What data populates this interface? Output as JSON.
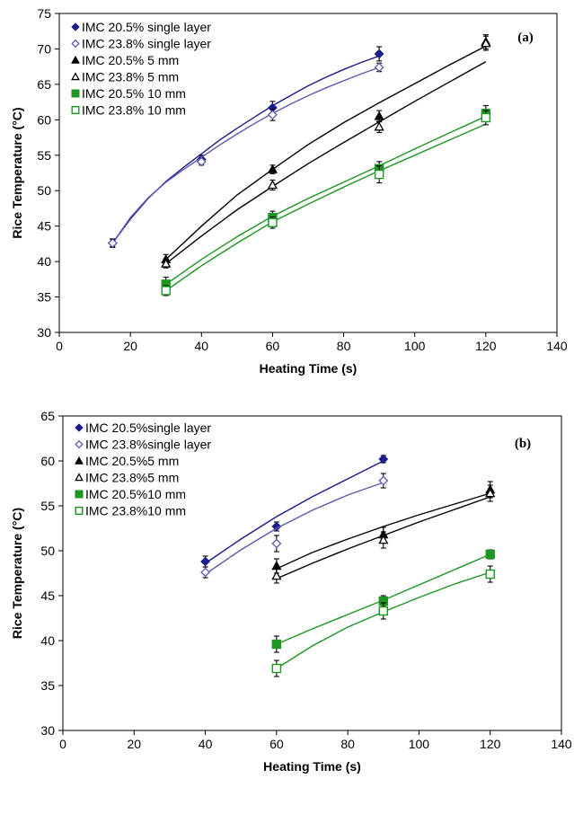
{
  "chart_data": [
    {
      "type": "line",
      "panel_label": "(a)",
      "xlabel": "Heating Time (s)",
      "ylabel": "Rice Temperature (°C)",
      "xlim": [
        0,
        140
      ],
      "ylim": [
        30,
        75
      ],
      "xticks": [
        "0",
        "20",
        "40",
        "60",
        "80",
        "100",
        "120",
        "140"
      ],
      "yticks": [
        "30",
        "35",
        "40",
        "45",
        "50",
        "55",
        "60",
        "65",
        "70",
        "75"
      ],
      "grid": false,
      "legend_position": "top-left",
      "series": [
        {
          "name": "IMC 20.5% single layer",
          "color": "#1c1c8c",
          "marker": "diamond-filled",
          "points": [
            {
              "x": 15,
              "y": 42.6,
              "err": 0.6
            },
            {
              "x": 40,
              "y": 54.4,
              "err": 0.6
            },
            {
              "x": 60,
              "y": 61.7,
              "err": 0.9
            },
            {
              "x": 90,
              "y": 69.3,
              "err": 1.0
            }
          ],
          "curve": [
            [
              15,
              42.6
            ],
            [
              20,
              46.0
            ],
            [
              25,
              48.9
            ],
            [
              30,
              51.3
            ],
            [
              35,
              53.3
            ],
            [
              40,
              55.2
            ],
            [
              45,
              57.1
            ],
            [
              50,
              58.8
            ],
            [
              55,
              60.4
            ],
            [
              60,
              62.0
            ],
            [
              65,
              63.4
            ],
            [
              70,
              64.8
            ],
            [
              75,
              66.0
            ],
            [
              80,
              67.1
            ],
            [
              85,
              68.1
            ],
            [
              90,
              69.0
            ]
          ]
        },
        {
          "name": "IMC 23.8% single layer",
          "color": "#5a5ab4",
          "marker": "diamond-open",
          "points": [
            {
              "x": 15,
              "y": 42.6,
              "err": 0.5
            },
            {
              "x": 40,
              "y": 54.1,
              "err": 0.5
            },
            {
              "x": 60,
              "y": 60.7,
              "err": 0.8
            },
            {
              "x": 90,
              "y": 67.4,
              "err": 0.6
            }
          ],
          "curve": [
            [
              15,
              42.6
            ],
            [
              20,
              46.2
            ],
            [
              25,
              49.0
            ],
            [
              30,
              51.2
            ],
            [
              35,
              53.0
            ],
            [
              40,
              54.7
            ],
            [
              45,
              56.4
            ],
            [
              50,
              58.0
            ],
            [
              55,
              59.5
            ],
            [
              60,
              60.9
            ],
            [
              65,
              62.2
            ],
            [
              70,
              63.4
            ],
            [
              75,
              64.5
            ],
            [
              80,
              65.5
            ],
            [
              85,
              66.5
            ],
            [
              90,
              67.4
            ]
          ]
        },
        {
          "name": "IMC 20.5% 5 mm",
          "color": "#000000",
          "marker": "triangle-filled",
          "points": [
            {
              "x": 30,
              "y": 40.3,
              "err": 0.7
            },
            {
              "x": 60,
              "y": 53.0,
              "err": 0.6
            },
            {
              "x": 90,
              "y": 60.5,
              "err": 0.8
            },
            {
              "x": 120,
              "y": 71.0,
              "err": 1.0
            }
          ],
          "curve": [
            [
              30,
              40.3
            ],
            [
              40,
              45.0
            ],
            [
              50,
              49.4
            ],
            [
              60,
              53.0
            ],
            [
              70,
              56.5
            ],
            [
              80,
              59.6
            ],
            [
              90,
              62.4
            ],
            [
              100,
              65.1
            ],
            [
              110,
              67.8
            ],
            [
              120,
              70.4
            ]
          ]
        },
        {
          "name": "IMC 23.8% 5 mm",
          "color": "#000000",
          "marker": "triangle-open",
          "points": [
            {
              "x": 30,
              "y": 39.7,
              "err": 0.6
            },
            {
              "x": 60,
              "y": 50.8,
              "err": 0.7
            },
            {
              "x": 90,
              "y": 59.0,
              "err": 0.8
            },
            {
              "x": 120,
              "y": 70.8,
              "err": 1.0
            }
          ],
          "curve": [
            [
              30,
              39.7
            ],
            [
              40,
              43.6
            ],
            [
              50,
              47.3
            ],
            [
              60,
              50.6
            ],
            [
              70,
              53.8
            ],
            [
              80,
              56.8
            ],
            [
              90,
              59.7
            ],
            [
              100,
              62.6
            ],
            [
              110,
              65.4
            ],
            [
              120,
              68.2
            ]
          ]
        },
        {
          "name": "IMC 20.5% 10 mm",
          "color": "#1e9622",
          "marker": "square-filled",
          "points": [
            {
              "x": 30,
              "y": 36.8,
              "err": 1.0
            },
            {
              "x": 60,
              "y": 46.2,
              "err": 0.9
            },
            {
              "x": 90,
              "y": 53.1,
              "err": 1.0
            },
            {
              "x": 120,
              "y": 60.9,
              "err": 1.1
            }
          ],
          "curve": [
            [
              30,
              36.8
            ],
            [
              40,
              40.3
            ],
            [
              50,
              43.5
            ],
            [
              60,
              46.4
            ],
            [
              70,
              48.9
            ],
            [
              80,
              51.2
            ],
            [
              90,
              53.5
            ],
            [
              100,
              55.9
            ],
            [
              110,
              58.2
            ],
            [
              120,
              60.5
            ]
          ]
        },
        {
          "name": "IMC 23.8% 10 mm",
          "color": "#1e9622",
          "marker": "square-open",
          "points": [
            {
              "x": 30,
              "y": 35.9,
              "err": 0.7
            },
            {
              "x": 60,
              "y": 45.5,
              "err": 0.8
            },
            {
              "x": 90,
              "y": 52.3,
              "err": 1.2
            },
            {
              "x": 120,
              "y": 60.3,
              "err": 1.0
            }
          ],
          "curve": [
            [
              30,
              35.9
            ],
            [
              40,
              39.4
            ],
            [
              50,
              42.6
            ],
            [
              60,
              45.6
            ],
            [
              70,
              48.1
            ],
            [
              80,
              50.5
            ],
            [
              90,
              52.8
            ],
            [
              100,
              55.0
            ],
            [
              110,
              57.2
            ],
            [
              120,
              59.4
            ]
          ]
        }
      ]
    },
    {
      "type": "line",
      "panel_label": "(b)",
      "xlabel": "Heating Time (s)",
      "ylabel": "Rice Temperature (°C)",
      "xlim": [
        0,
        140
      ],
      "ylim": [
        30,
        65
      ],
      "xticks": [
        "0",
        "20",
        "40",
        "60",
        "80",
        "100",
        "120",
        "140"
      ],
      "yticks": [
        "30",
        "35",
        "40",
        "45",
        "50",
        "55",
        "60",
        "65"
      ],
      "grid": false,
      "legend_position": "top-left",
      "series": [
        {
          "name": "IMC 20.5%single layer",
          "color": "#1c1c8c",
          "marker": "diamond-filled",
          "points": [
            {
              "x": 40,
              "y": 48.8,
              "err": 0.6
            },
            {
              "x": 60,
              "y": 52.7,
              "err": 0.5
            },
            {
              "x": 90,
              "y": 60.2,
              "err": 0.4
            }
          ],
          "curve": [
            [
              40,
              48.6
            ],
            [
              50,
              51.3
            ],
            [
              60,
              53.8
            ],
            [
              70,
              56.0
            ],
            [
              80,
              58.0
            ],
            [
              90,
              60.0
            ]
          ]
        },
        {
          "name": "IMC 23.8%single layer",
          "color": "#5a5ab4",
          "marker": "diamond-open",
          "points": [
            {
              "x": 40,
              "y": 47.6,
              "err": 0.6
            },
            {
              "x": 60,
              "y": 50.8,
              "err": 0.9
            },
            {
              "x": 90,
              "y": 57.8,
              "err": 0.8
            }
          ],
          "curve": [
            [
              40,
              47.4
            ],
            [
              50,
              50.1
            ],
            [
              60,
              52.5
            ],
            [
              70,
              54.5
            ],
            [
              80,
              56.2
            ],
            [
              90,
              57.6
            ]
          ]
        },
        {
          "name": "IMC 20.5%5 mm",
          "color": "#000000",
          "marker": "triangle-filled",
          "points": [
            {
              "x": 60,
              "y": 48.3,
              "err": 0.8
            },
            {
              "x": 90,
              "y": 51.8,
              "err": 0.8
            },
            {
              "x": 120,
              "y": 56.8,
              "err": 0.9
            }
          ],
          "curve": [
            [
              60,
              48.0
            ],
            [
              70,
              49.8
            ],
            [
              80,
              51.3
            ],
            [
              90,
              52.7
            ],
            [
              100,
              54.0
            ],
            [
              110,
              55.2
            ],
            [
              120,
              56.4
            ]
          ]
        },
        {
          "name": "IMC 23.8%5 mm",
          "color": "#000000",
          "marker": "triangle-open",
          "points": [
            {
              "x": 60,
              "y": 47.2,
              "err": 0.8
            },
            {
              "x": 90,
              "y": 51.2,
              "err": 0.9
            },
            {
              "x": 120,
              "y": 56.4,
              "err": 0.9
            }
          ],
          "curve": [
            [
              60,
              46.9
            ],
            [
              70,
              48.6
            ],
            [
              80,
              50.2
            ],
            [
              90,
              51.7
            ],
            [
              100,
              53.2
            ],
            [
              110,
              54.6
            ],
            [
              120,
              56.0
            ]
          ]
        },
        {
          "name": "IMC 20.5%10 mm",
          "color": "#1e9622",
          "marker": "square-filled",
          "points": [
            {
              "x": 60,
              "y": 39.6,
              "err": 0.9
            },
            {
              "x": 90,
              "y": 44.4,
              "err": 0.6
            },
            {
              "x": 120,
              "y": 49.6,
              "err": 0.5
            }
          ],
          "curve": [
            [
              60,
              39.6
            ],
            [
              70,
              41.3
            ],
            [
              80,
              42.9
            ],
            [
              90,
              44.5
            ],
            [
              100,
              46.2
            ],
            [
              110,
              47.9
            ],
            [
              120,
              49.6
            ]
          ]
        },
        {
          "name": "IMC 23.8%10 mm",
          "color": "#1e9622",
          "marker": "square-open",
          "points": [
            {
              "x": 60,
              "y": 36.9,
              "err": 0.9
            },
            {
              "x": 90,
              "y": 43.3,
              "err": 0.9
            },
            {
              "x": 120,
              "y": 47.4,
              "err": 0.9
            }
          ],
          "curve": [
            [
              60,
              36.9
            ],
            [
              70,
              39.4
            ],
            [
              80,
              41.5
            ],
            [
              90,
              43.2
            ],
            [
              100,
              44.8
            ],
            [
              110,
              46.3
            ],
            [
              120,
              47.6
            ]
          ]
        }
      ]
    }
  ]
}
